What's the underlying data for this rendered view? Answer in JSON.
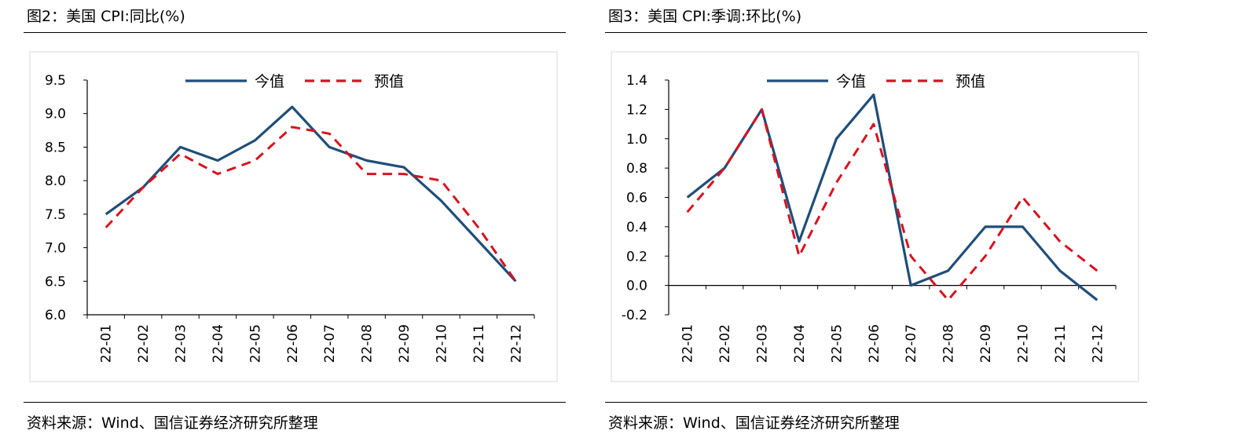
{
  "charts": [
    {
      "figure_title": "图2：美国 CPI:同比(%)",
      "source": "资料来源：Wind、国信证券经济研究所整理"
    },
    {
      "figure_title": "图3：美国 CPI:季调:环比(%)",
      "source": "资料来源：Wind、国信证券经济研究所整理"
    }
  ],
  "chart_data": [
    {
      "type": "line",
      "title": "美国 CPI:同比(%)",
      "categories": [
        "22-01",
        "22-02",
        "22-03",
        "22-04",
        "22-05",
        "22-06",
        "22-07",
        "22-08",
        "22-09",
        "22-10",
        "22-11",
        "22-12"
      ],
      "yticks": [
        "9.5",
        "9.0",
        "8.5",
        "8.0",
        "7.5",
        "7.0",
        "6.5",
        "6.0"
      ],
      "ylim": [
        6.0,
        9.5
      ],
      "legend_position": "top-center",
      "grid": false,
      "series": [
        {
          "name": "今值",
          "color": "#1f4e79",
          "style": "solid",
          "values": [
            7.5,
            7.9,
            8.5,
            8.3,
            8.6,
            9.1,
            8.5,
            8.3,
            8.2,
            7.7,
            7.1,
            6.5
          ]
        },
        {
          "name": "预值",
          "color": "#d7121f",
          "style": "dashed",
          "values": [
            7.3,
            7.9,
            8.4,
            8.1,
            8.3,
            8.8,
            8.7,
            8.1,
            8.1,
            8.0,
            7.3,
            6.5
          ]
        }
      ]
    },
    {
      "type": "line",
      "title": "美国 CPI:季调:环比(%)",
      "categories": [
        "22-01",
        "22-02",
        "22-03",
        "22-04",
        "22-05",
        "22-06",
        "22-07",
        "22-08",
        "22-09",
        "22-10",
        "22-11",
        "22-12"
      ],
      "yticks": [
        "1.4",
        "1.2",
        "1.0",
        "0.8",
        "0.6",
        "0.4",
        "0.2",
        "0.0",
        "-0.2"
      ],
      "ylim": [
        -0.2,
        1.4
      ],
      "legend_position": "top-center",
      "grid": false,
      "series": [
        {
          "name": "今值",
          "color": "#1f4e79",
          "style": "solid",
          "values": [
            0.6,
            0.8,
            1.2,
            0.3,
            1.0,
            1.3,
            0.0,
            0.1,
            0.4,
            0.4,
            0.1,
            -0.1
          ]
        },
        {
          "name": "预值",
          "color": "#d7121f",
          "style": "dashed",
          "values": [
            0.5,
            0.8,
            1.2,
            0.2,
            0.7,
            1.1,
            0.2,
            -0.1,
            0.2,
            0.6,
            0.3,
            0.1
          ]
        }
      ]
    }
  ]
}
